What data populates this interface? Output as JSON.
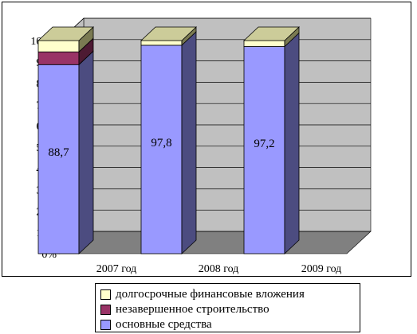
{
  "chart_data": {
    "type": "bar",
    "stacked": true,
    "normalized_percent": true,
    "three_d": true,
    "categories": [
      "2007 год",
      "2008 год",
      "2009 год"
    ],
    "series": [
      {
        "name": "основные средства",
        "values": [
          88.7,
          97.8,
          97.2
        ],
        "data_labels": [
          "88,7",
          "97,8",
          "97,2"
        ],
        "color": "#9999ff",
        "side_color": "#4c4c80",
        "top_color": "#8c8cc8"
      },
      {
        "name": "незавершенное строительство",
        "values": [
          6.0,
          0.0,
          0.0
        ],
        "color": "#993366",
        "side_color": "#4d1a33",
        "top_color": "#7a2952"
      },
      {
        "name": "долгосрочные финансовые вложения",
        "values": [
          5.3,
          2.2,
          2.8
        ],
        "color": "#ffffcc",
        "side_color": "#7a7a52",
        "top_color": "#cccc99"
      }
    ],
    "yticks": [
      "0%",
      "10%",
      "20%",
      "30%",
      "40%",
      "50%",
      "60%",
      "70%",
      "80%",
      "90%",
      "100%"
    ],
    "ylim": [
      0,
      100
    ],
    "grid": true,
    "legend_position": "bottom",
    "colors": {
      "wall": "#c0c0c0",
      "floor": "#808080",
      "gridline": "#000000"
    }
  }
}
